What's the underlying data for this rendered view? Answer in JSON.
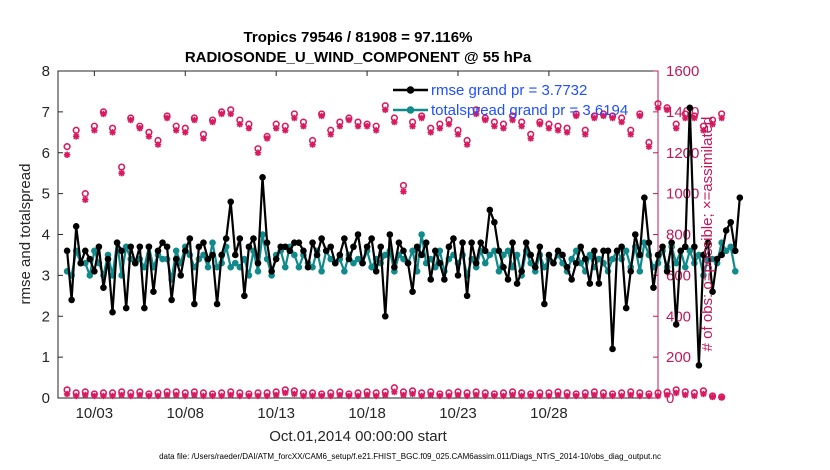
{
  "chart_data": {
    "type": "line",
    "title": "Tropics 79546 / 81908 = 97.116%",
    "subtitle": "RADIOSONDE_U_WIND_COMPONENT @ 55 hPa",
    "xlabel": "Oct.01,2014 00:00:00 start",
    "ylabel": "rmse and totalspread",
    "ylabel_right": "# of obs: o=possible; ×=assimilated",
    "xlim": [
      1,
      34
    ],
    "ylim": [
      0,
      8
    ],
    "ylim_right": [
      0,
      1600
    ],
    "xticks": [
      3,
      8,
      13,
      18,
      23,
      28
    ],
    "xtick_labels": [
      "10/03",
      "10/08",
      "10/13",
      "10/18",
      "10/23",
      "10/28"
    ],
    "yticks": [
      "0",
      "1",
      "2",
      "3",
      "4",
      "5",
      "6",
      "7",
      "8"
    ],
    "yticks_right": [
      "0",
      "200",
      "400",
      "600",
      "800",
      "1000",
      "1200",
      "1400",
      "1600"
    ],
    "legend": [
      "rmse grand pr = 3.7732",
      "totalspread grand pr = 3.6194"
    ],
    "colors": {
      "rmse": "#000000",
      "spread": "#108a8a",
      "obs": "#d81b60"
    },
    "series": [
      {
        "name": "rmse",
        "x_start": 1.5,
        "x_step": 0.25,
        "values": [
          3.6,
          2.4,
          4.2,
          3.3,
          3.6,
          3.4,
          3.1,
          3.7,
          2.7,
          3.4,
          2.1,
          3.8,
          3.6,
          2.2,
          3.7,
          3.3,
          3.7,
          2.2,
          3.7,
          2.6,
          3.6,
          3.8,
          3.7,
          2.4,
          3.4,
          3.0,
          3.6,
          3.9,
          2.3,
          3.7,
          3.8,
          3.4,
          3.5,
          2.3,
          3.5,
          3.9,
          4.8,
          3.5,
          3.9,
          2.5,
          3.7,
          3.9,
          3.3,
          5.4,
          3.8,
          3.1,
          3.4,
          3.7,
          3.7,
          3.6,
          3.8,
          3.8,
          3.6,
          3.2,
          3.8,
          3.5,
          3.9,
          3.6,
          3.7,
          3.3,
          3.5,
          3.9,
          3.4,
          3.7,
          4.0,
          3.3,
          3.7,
          3.9,
          3.1,
          3.7,
          2.0,
          4.0,
          3.2,
          3.8,
          3.6,
          3.3,
          2.6,
          3.7,
          3.5,
          3.8,
          2.9,
          3.6,
          3.3,
          2.9,
          3.7,
          3.9,
          3.0,
          3.8,
          2.5,
          3.8,
          3.3,
          3.8,
          3.6,
          4.6,
          4.3,
          3.6,
          3.2,
          2.9,
          3.8,
          2.8,
          3.1,
          3.8,
          3.5,
          3.2,
          3.7,
          2.3,
          3.5,
          3.3,
          3.6,
          3.5,
          3.2,
          2.9,
          3.3,
          3.7,
          3.4,
          2.8,
          3.6,
          2.8,
          3.6,
          3.6,
          1.2,
          3.6,
          3.7,
          2.2,
          3.1,
          4.0,
          3.5,
          4.9,
          3.8,
          2.7,
          3.5,
          3.7,
          3.1,
          3.8,
          1.8,
          3.6,
          3.7,
          7.1,
          3.7,
          0.8,
          3.5,
          3.8,
          2.6,
          3.4,
          3.5,
          4.1,
          4.3,
          3.6,
          4.9
        ]
      },
      {
        "name": "totalspread",
        "x_start": 1.5,
        "x_step": 0.25,
        "values": [
          3.1,
          3.0,
          3.6,
          3.3,
          3.3,
          3.0,
          3.6,
          3.3,
          3.0,
          3.5,
          3.0,
          3.8,
          3.0,
          3.7,
          3.4,
          3.3,
          3.4,
          3.2,
          3.7,
          3.2,
          3.5,
          3.4,
          3.4,
          2.9,
          3.6,
          3.3,
          3.7,
          3.5,
          3.2,
          3.4,
          3.5,
          3.2,
          3.8,
          3.2,
          3.3,
          3.7,
          3.2,
          3.3,
          3.2,
          3.4,
          3.0,
          3.6,
          3.1,
          4.0,
          3.4,
          3.0,
          3.5,
          3.6,
          3.2,
          3.7,
          3.5,
          3.2,
          3.5,
          3.3,
          3.2,
          3.6,
          3.1,
          3.6,
          3.4,
          3.3,
          3.4,
          3.1,
          3.5,
          3.3,
          3.4,
          3.3,
          3.6,
          3.2,
          3.4,
          3.3,
          3.5,
          3.6,
          3.1,
          3.5,
          3.4,
          3.3,
          3.6,
          3.1,
          4.0,
          3.3,
          3.4,
          3.2,
          3.6,
          3.1,
          3.4,
          3.5,
          3.3,
          3.5,
          3.0,
          3.4,
          3.2,
          3.6,
          3.3,
          3.5,
          3.6,
          3.1,
          3.5,
          3.6,
          3.2,
          3.5,
          3.0,
          3.6,
          3.3,
          3.1,
          3.5,
          3.2,
          3.4,
          3.3,
          3.5,
          3.3,
          3.1,
          3.4,
          3.6,
          3.3,
          3.1,
          3.5,
          3.2,
          3.4,
          3.3,
          3.1,
          3.4,
          3.6,
          3.4,
          3.6,
          3.2,
          3.7,
          3.1,
          3.8,
          3.5,
          3.2,
          3.3,
          3.6,
          3.2,
          3.7,
          3.3,
          3.6,
          3.2,
          3.6,
          3.3,
          3.5,
          3.0,
          3.4,
          3.4,
          3.3,
          3.8,
          3.6,
          3.7,
          3.1
        ]
      }
    ],
    "obs_possible": {
      "x_start": 1.5,
      "x_step": 0.5,
      "values": [
        1230,
        1310,
        1000,
        1330,
        1400,
        1320,
        1130,
        1370,
        1330,
        1300,
        1260,
        1380,
        1330,
        1320,
        1370,
        1290,
        1360,
        1400,
        1410,
        1360,
        1340,
        1220,
        1280,
        1340,
        1330,
        1390,
        1350,
        1260,
        1390,
        1310,
        1350,
        1370,
        1350,
        1340,
        1330,
        1430,
        1370,
        1040,
        1350,
        1380,
        1320,
        1340,
        1360,
        1310,
        1260,
        1410,
        1370,
        1350,
        1340,
        1380,
        1350,
        1290,
        1350,
        1340,
        1330,
        1320,
        1390,
        1310,
        1380,
        1390,
        1380,
        1370,
        1310,
        1390,
        1250,
        1440,
        1420,
        1340,
        1390,
        1380,
        1330,
        1360,
        1390
      ]
    },
    "obs_assimilated": {
      "x_start": 1.5,
      "x_step": 0.5,
      "values": [
        1190,
        1280,
        970,
        1310,
        1390,
        1300,
        1100,
        1360,
        1320,
        1280,
        1240,
        1370,
        1310,
        1300,
        1360,
        1270,
        1350,
        1390,
        1390,
        1340,
        1320,
        1200,
        1270,
        1320,
        1310,
        1370,
        1330,
        1240,
        1380,
        1290,
        1330,
        1360,
        1330,
        1330,
        1310,
        1410,
        1350,
        1010,
        1330,
        1370,
        1300,
        1320,
        1340,
        1290,
        1240,
        1390,
        1360,
        1330,
        1320,
        1360,
        1330,
        1270,
        1340,
        1320,
        1310,
        1300,
        1380,
        1290,
        1370,
        1380,
        1370,
        1350,
        1290,
        1380,
        1230,
        1420,
        1410,
        1320,
        1370,
        1370,
        1310,
        1340,
        1370
      ]
    },
    "obs_low_possible": {
      "x_start": 1.5,
      "x_step": 0.5,
      "values": [
        40,
        25,
        30,
        20,
        25,
        25,
        30,
        25,
        30,
        20,
        25,
        30,
        30,
        25,
        30,
        25,
        20,
        25,
        30,
        25,
        20,
        25,
        25,
        30,
        40,
        35,
        25,
        25,
        20,
        25,
        30,
        20,
        25,
        30,
        25,
        30,
        50,
        30,
        35,
        25,
        30,
        20,
        25,
        30,
        25,
        30,
        25,
        20,
        25,
        30,
        25,
        20,
        25,
        25,
        30,
        25,
        20,
        25,
        30,
        25,
        20,
        25,
        30,
        25,
        20,
        25,
        30,
        40,
        30,
        25,
        35,
        10,
        5
      ]
    },
    "obs_low_assimilated": {
      "x_start": 1.5,
      "x_step": 0.5,
      "values": [
        20,
        10,
        15,
        10,
        10,
        10,
        15,
        10,
        15,
        10,
        10,
        15,
        15,
        10,
        15,
        10,
        10,
        10,
        15,
        10,
        10,
        10,
        10,
        15,
        25,
        20,
        10,
        10,
        10,
        10,
        15,
        10,
        10,
        15,
        10,
        15,
        30,
        15,
        20,
        10,
        15,
        10,
        10,
        15,
        10,
        15,
        10,
        10,
        10,
        15,
        10,
        10,
        10,
        10,
        15,
        10,
        10,
        10,
        15,
        10,
        10,
        10,
        15,
        10,
        10,
        10,
        15,
        25,
        15,
        10,
        20,
        5,
        2
      ]
    }
  },
  "footer": "data file: /Users/raeder/DAI/ATM_forcXX/CAM6_setup/f.e21.FHIST_BGC.f09_025.CAM6assim.011/Diags_NTrS_2014-10/obs_diag_output.nc"
}
